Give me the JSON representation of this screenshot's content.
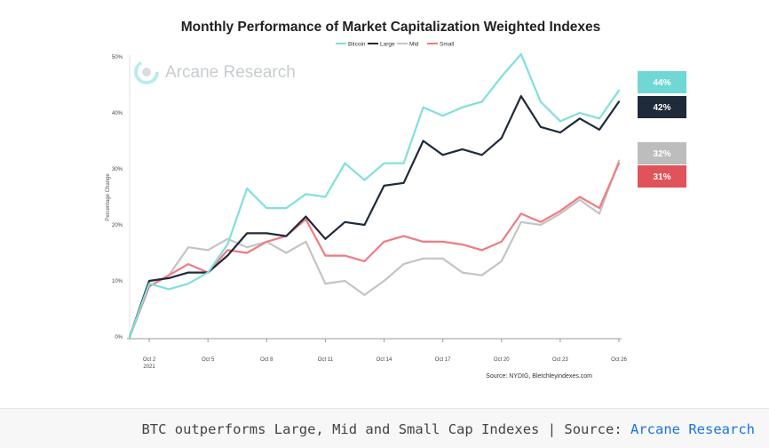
{
  "chart_data": {
    "type": "line",
    "title": "Monthly Performance of Market Capitalization Weighted Indexes",
    "ylabel": "Percentage Change",
    "xlabel": "",
    "ylim": [
      0,
      50
    ],
    "y_ticks": [
      "0%",
      "10%",
      "20%",
      "30%",
      "40%",
      "50%"
    ],
    "x_ticks": [
      "Oct 2",
      "Oct 5",
      "Oct 8",
      "Oct 11",
      "Oct 14",
      "Oct 17",
      "Oct 20",
      "Oct 23",
      "Oct 26"
    ],
    "x_tick_sub": "2021",
    "legend_position": "top-center",
    "source": "Source: NYDIG, Bletchleyindexes.com",
    "watermark": "Arcane Research",
    "series": [
      {
        "name": "Bitcoin",
        "color": "#7fe0db",
        "values": [
          0,
          9.5,
          8.5,
          9.5,
          11.5,
          16.5,
          26.5,
          23,
          23,
          25.5,
          25,
          31,
          28,
          31,
          31,
          41,
          39.5,
          41,
          42,
          46.5,
          50.5,
          42,
          38.5,
          40,
          39,
          44
        ]
      },
      {
        "name": "Large",
        "color": "#1f2a3a",
        "values": [
          0,
          10,
          10.5,
          11.5,
          11.5,
          14.5,
          18.5,
          18.5,
          18,
          21.5,
          17.5,
          20.5,
          20,
          27,
          27.5,
          35,
          32.5,
          33.5,
          32.5,
          35.5,
          43,
          37.5,
          36.5,
          39,
          37,
          42
        ]
      },
      {
        "name": "Mid",
        "color": "#c4c4c4",
        "values": [
          0,
          9,
          11,
          16,
          15.5,
          17.5,
          16,
          17,
          15,
          17,
          9.5,
          10,
          7.5,
          10,
          13,
          14,
          14,
          11.5,
          11,
          13.5,
          20.5,
          20,
          22,
          24.5,
          22,
          31.5
        ]
      },
      {
        "name": "Small",
        "color": "#ef7b80",
        "values": [
          0,
          9,
          11,
          13,
          11.5,
          15.5,
          15,
          17,
          18,
          21,
          14.5,
          14.5,
          13.5,
          17,
          18,
          17,
          17,
          16.5,
          15.5,
          17,
          22,
          20.5,
          22.5,
          25,
          23,
          31
        ]
      }
    ],
    "end_labels": [
      {
        "series": "Bitcoin",
        "text": "44%",
        "color": "#6fd8d5"
      },
      {
        "series": "Large",
        "text": "42%",
        "color": "#1f2a3a"
      },
      {
        "series": "Mid",
        "text": "32%",
        "color": "#bdbdbd"
      },
      {
        "series": "Small",
        "text": "31%",
        "color": "#e0535a"
      }
    ]
  },
  "caption": {
    "text": "BTC outperforms Large, Mid and Small Cap Indexes | Source: ",
    "link_text": "Arcane Research"
  }
}
